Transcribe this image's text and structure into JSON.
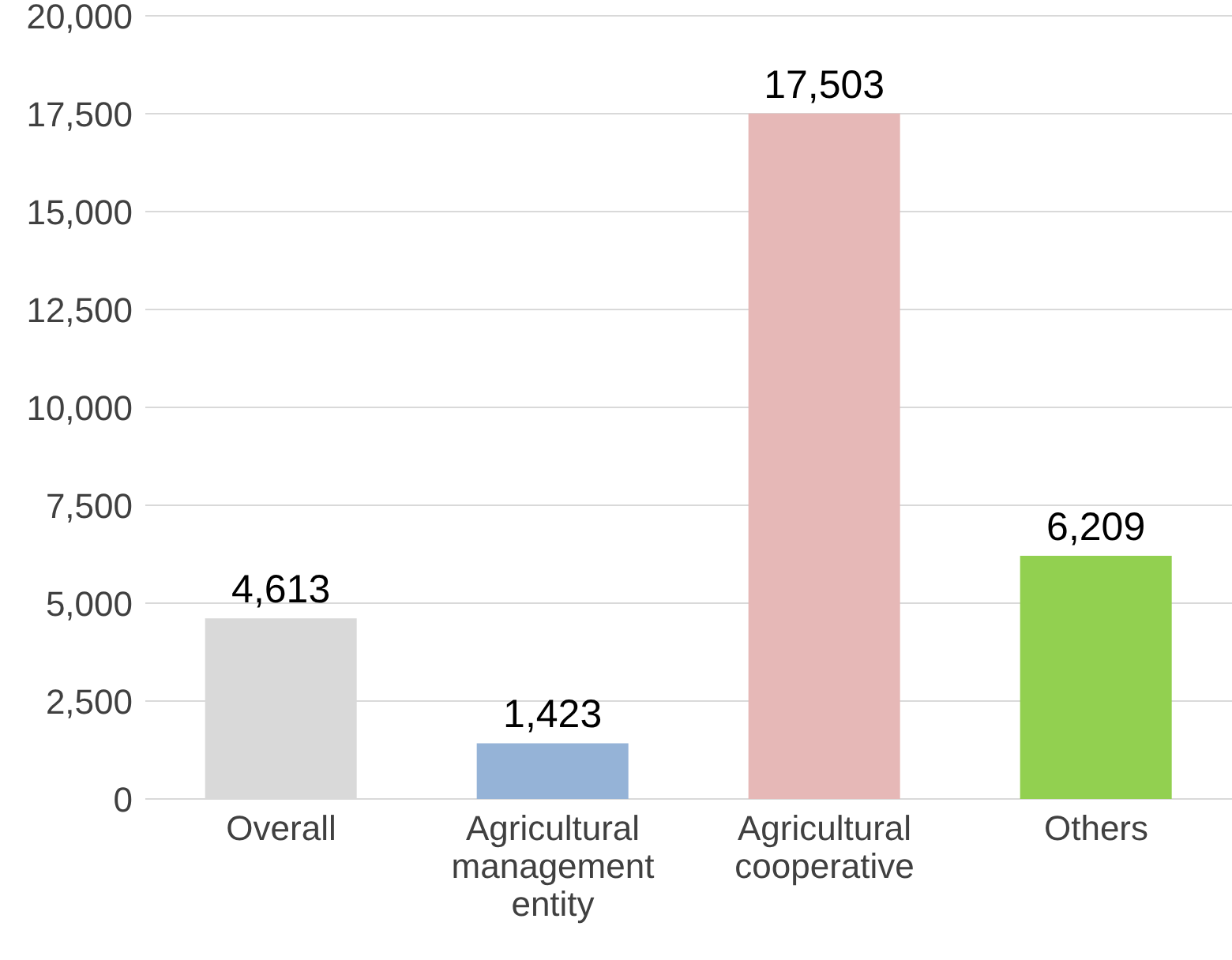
{
  "chart_data": {
    "type": "bar",
    "categories": [
      "Overall",
      "Agricultural management entity",
      "Agricultural cooperative",
      "Others"
    ],
    "values": [
      4613,
      1423,
      17503,
      6209
    ],
    "colors": [
      "#d9d9d9",
      "#95b3d7",
      "#e6b8b7",
      "#92d050"
    ],
    "ylim": [
      0,
      20000
    ],
    "yticks": [
      {
        "value": 0,
        "label": "0"
      },
      {
        "value": 2500,
        "label": "2,500"
      },
      {
        "value": 5000,
        "label": "5,000"
      },
      {
        "value": 7500,
        "label": "7,500"
      },
      {
        "value": 10000,
        "label": "10,000"
      },
      {
        "value": 12500,
        "label": "12,500"
      },
      {
        "value": 15000,
        "label": "15,000"
      },
      {
        "value": 17500,
        "label": "17,500"
      },
      {
        "value": 20000,
        "label": "20,000"
      }
    ],
    "grid": "y",
    "value_labels": [
      "4,613",
      "1,423",
      "17,503",
      "6,209"
    ],
    "legend": false
  }
}
